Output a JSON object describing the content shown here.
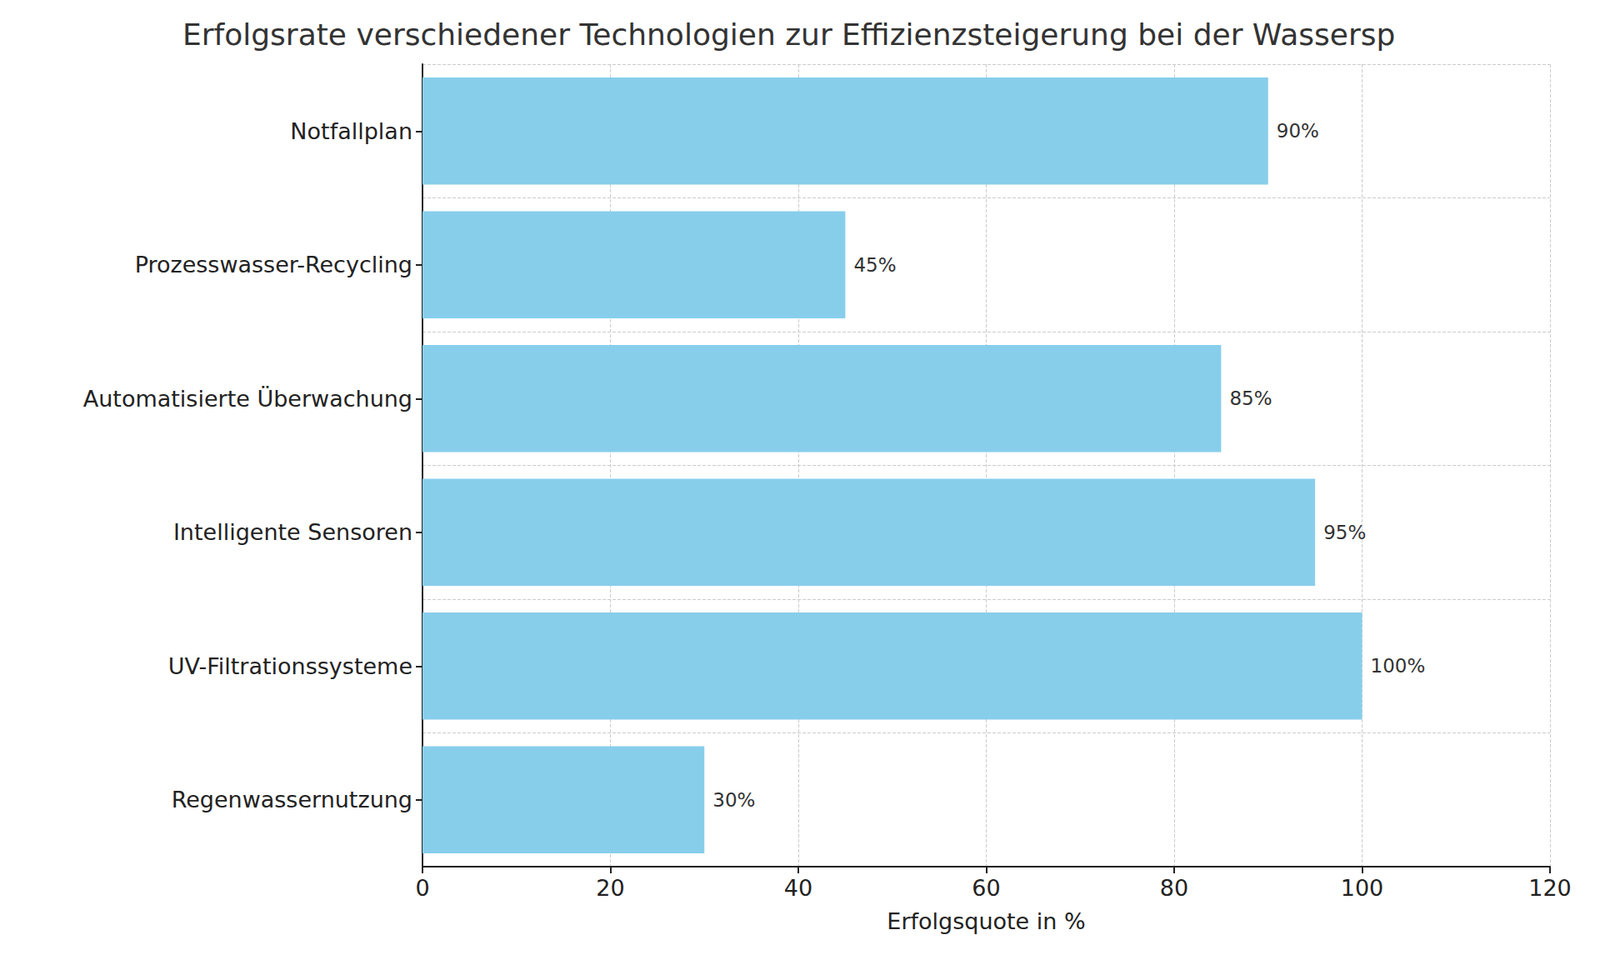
{
  "chart_data": {
    "type": "bar",
    "orientation": "horizontal",
    "title": "Erfolgsrate verschiedener Technologien zur Effizienzsteigerung bei der Wassersp",
    "x_label": "Erfolgsquote in %",
    "categories": [
      "Notfallplan",
      "Prozesswasser-Recycling",
      "Automatisierte Überwachung",
      "Intelligente Sensoren",
      "UV-Filtrationssysteme",
      "Regenwassernutzung"
    ],
    "values": [
      90,
      45,
      85,
      95,
      100,
      30
    ],
    "value_labels": [
      "90%",
      "45%",
      "85%",
      "95%",
      "100%",
      "30%"
    ],
    "data_labels": true,
    "color": "#87ceeb",
    "xlim": [
      0,
      120
    ],
    "xticks": [
      0,
      20,
      40,
      60,
      80,
      100,
      120
    ],
    "grid": true
  }
}
